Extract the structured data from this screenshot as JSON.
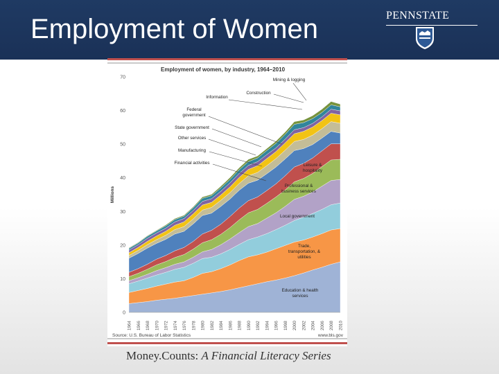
{
  "slide": {
    "title": "Employment of Women",
    "logo_text": "PENNSTATE",
    "footer_plain": "Money.Counts: ",
    "footer_italic": "A Financial Literacy Series"
  },
  "colors": {
    "header_bg": "#1f3a63",
    "accent_red": "#c0504d"
  },
  "chart_data": {
    "type": "area",
    "stacked": true,
    "title": "Employment of women, by industry, 1964–2010",
    "ylabel": "Millions",
    "ylim": [
      0,
      70
    ],
    "yticks": [
      0,
      10,
      20,
      30,
      40,
      50,
      60,
      70
    ],
    "x": [
      1964,
      1966,
      1968,
      1970,
      1972,
      1974,
      1976,
      1978,
      1980,
      1982,
      1984,
      1986,
      1988,
      1990,
      1992,
      1994,
      1996,
      1998,
      2000,
      2002,
      2004,
      2006,
      2008,
      2010
    ],
    "xtick_labels": [
      "1964",
      "1966",
      "1968",
      "1970",
      "1972",
      "1974",
      "1976",
      "1978",
      "1980",
      "1982",
      "1984",
      "1986",
      "1988",
      "1990",
      "1992",
      "1994",
      "1996",
      "1998",
      "2000",
      "2002",
      "2004",
      "2006",
      "2008",
      "2010"
    ],
    "source": "Source: U.S. Bureau of Labor Statistics",
    "url": "www.bls.gov",
    "series": [
      {
        "name": "Education & health services",
        "color": "#9fb3d6",
        "values": [
          2.6,
          2.9,
          3.2,
          3.6,
          3.9,
          4.2,
          4.6,
          5.0,
          5.4,
          5.8,
          6.2,
          6.7,
          7.3,
          7.9,
          8.5,
          9.1,
          9.6,
          10.2,
          10.9,
          11.7,
          12.6,
          13.4,
          14.3,
          15.0
        ]
      },
      {
        "name": "Trade, transportation, & utilities",
        "color": "#f79646",
        "values": [
          3.3,
          3.6,
          3.9,
          4.2,
          4.5,
          4.8,
          4.8,
          5.4,
          6.2,
          6.3,
          6.8,
          7.4,
          8.1,
          8.6,
          8.6,
          8.8,
          9.3,
          9.7,
          10.0,
          9.8,
          9.8,
          10.0,
          10.2,
          9.9
        ]
      },
      {
        "name": "Local government",
        "color": "#92cddc",
        "values": [
          2.6,
          2.8,
          3.1,
          3.3,
          3.5,
          3.8,
          4.0,
          4.2,
          4.4,
          4.3,
          4.4,
          4.6,
          4.8,
          5.1,
          5.3,
          5.5,
          5.7,
          6.0,
          6.4,
          6.8,
          7.0,
          7.2,
          7.5,
          7.6
        ]
      },
      {
        "name": "Professional & business services",
        "color": "#b2a2c7",
        "values": [
          0.9,
          1.0,
          1.1,
          1.3,
          1.4,
          1.5,
          1.6,
          1.8,
          2.0,
          2.3,
          2.7,
          3.1,
          3.5,
          3.9,
          4.0,
          4.6,
          5.0,
          5.6,
          6.3,
          6.2,
          6.4,
          6.9,
          7.2,
          7.0
        ]
      },
      {
        "name": "Leisure & hospitality",
        "color": "#9bbb59",
        "values": [
          1.2,
          1.3,
          1.5,
          1.7,
          1.8,
          2.0,
          2.2,
          2.4,
          2.7,
          2.9,
          3.1,
          3.4,
          3.8,
          4.1,
          4.2,
          4.4,
          4.7,
          4.9,
          5.2,
          5.3,
          5.5,
          5.8,
          6.1,
          6.0
        ]
      },
      {
        "name": "Financial activities",
        "color": "#c0504d",
        "values": [
          1.3,
          1.4,
          1.5,
          1.7,
          1.8,
          2.0,
          2.1,
          2.3,
          2.6,
          2.8,
          3.0,
          3.3,
          3.5,
          3.6,
          3.7,
          3.8,
          3.9,
          4.2,
          4.4,
          4.5,
          4.6,
          4.7,
          4.8,
          4.6
        ]
      },
      {
        "name": "Manufacturing",
        "color": "#4f81bd",
        "values": [
          4.2,
          4.5,
          4.8,
          4.7,
          4.8,
          5.0,
          4.8,
          5.2,
          5.5,
          5.1,
          5.3,
          5.2,
          5.3,
          5.2,
          5.0,
          5.0,
          5.0,
          5.0,
          4.9,
          4.4,
          4.0,
          3.8,
          3.7,
          3.2
        ]
      },
      {
        "name": "Other services",
        "color": "#c4bd97",
        "values": [
          0.8,
          0.9,
          1.0,
          1.1,
          1.2,
          1.3,
          1.4,
          1.5,
          1.6,
          1.7,
          1.8,
          1.9,
          2.0,
          2.2,
          2.3,
          2.4,
          2.5,
          2.6,
          2.7,
          2.7,
          2.8,
          2.8,
          2.9,
          2.9
        ]
      },
      {
        "name": "State government",
        "color": "#f2c314",
        "values": [
          0.8,
          0.9,
          1.0,
          1.1,
          1.2,
          1.3,
          1.4,
          1.5,
          1.5,
          1.5,
          1.6,
          1.7,
          1.8,
          1.9,
          2.0,
          2.1,
          2.1,
          2.2,
          2.3,
          2.4,
          2.4,
          2.4,
          2.5,
          2.5
        ]
      },
      {
        "name": "Federal government",
        "color": "#8064a2",
        "values": [
          0.8,
          0.8,
          0.9,
          0.9,
          0.9,
          1.0,
          1.0,
          1.0,
          1.1,
          1.1,
          1.1,
          1.2,
          1.2,
          1.2,
          1.2,
          1.2,
          1.1,
          1.1,
          1.2,
          1.1,
          1.1,
          1.1,
          1.2,
          1.2
        ]
      },
      {
        "name": "Information",
        "color": "#31859c",
        "values": [
          0.5,
          0.5,
          0.6,
          0.6,
          0.7,
          0.7,
          0.7,
          0.8,
          0.9,
          0.9,
          1.0,
          1.0,
          1.1,
          1.1,
          1.1,
          1.2,
          1.3,
          1.4,
          1.6,
          1.5,
          1.4,
          1.3,
          1.3,
          1.2
        ]
      },
      {
        "name": "Construction",
        "color": "#77933c",
        "values": [
          0.2,
          0.2,
          0.2,
          0.2,
          0.3,
          0.3,
          0.3,
          0.3,
          0.4,
          0.4,
          0.5,
          0.6,
          0.6,
          0.7,
          0.6,
          0.6,
          0.7,
          0.7,
          0.8,
          0.8,
          0.9,
          1.0,
          1.0,
          0.8
        ]
      },
      {
        "name": "Mining & logging",
        "color": "#b9cde5",
        "values": [
          0.05,
          0.05,
          0.05,
          0.05,
          0.06,
          0.07,
          0.08,
          0.09,
          0.1,
          0.11,
          0.1,
          0.08,
          0.08,
          0.08,
          0.08,
          0.07,
          0.07,
          0.07,
          0.07,
          0.07,
          0.08,
          0.09,
          0.1,
          0.1
        ]
      }
    ]
  }
}
